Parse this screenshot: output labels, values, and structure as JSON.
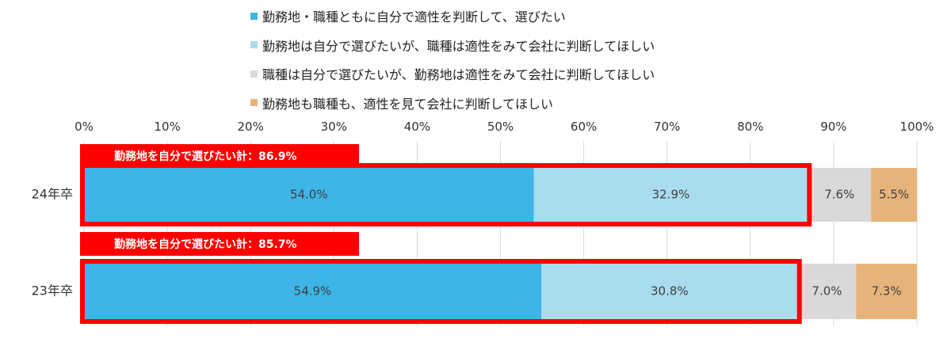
{
  "chart_data": {
    "type": "bar",
    "orientation": "horizontal",
    "stacked": true,
    "categories": [
      "24年卒",
      "23年卒"
    ],
    "series": [
      {
        "name": "勤務地・職種ともに自分で適性を判断して、選びたい",
        "color": "#3db5e6",
        "values": [
          54.0,
          54.9
        ],
        "labels": [
          "54.0%",
          "54.9%"
        ]
      },
      {
        "name": "勤務地は自分で選びたいが、職種は適性をみて会社に判断してほしい",
        "color": "#a9dcee",
        "values": [
          32.9,
          30.8
        ],
        "labels": [
          "32.9%",
          "30.8%"
        ]
      },
      {
        "name": "職種は自分で選びたいが、勤務地は適性をみて会社に判断してほしい",
        "color": "#d9d9d9",
        "values": [
          7.6,
          7.0
        ],
        "labels": [
          "7.6%",
          "7.0%"
        ]
      },
      {
        "name": "勤務地も職種も、適性を見て会社に判断してほしい",
        "color": "#e6b47a",
        "values": [
          5.5,
          7.3
        ],
        "labels": [
          "5.5%",
          "7.3%"
        ]
      }
    ],
    "xlim": [
      0,
      100
    ],
    "ticks": [
      "0%",
      "10%",
      "20%",
      "30%",
      "40%",
      "50%",
      "60%",
      "70%",
      "80%",
      "90%",
      "100%"
    ],
    "grid": true,
    "legend_position": "top",
    "annotations": [
      {
        "text": "勤務地を自分で選びたい計：86.9%",
        "value": 86.9
      },
      {
        "text": "勤務地を自分で選びたい計：85.7%",
        "value": 85.7
      }
    ],
    "highlight_color": "#ff0000"
  }
}
